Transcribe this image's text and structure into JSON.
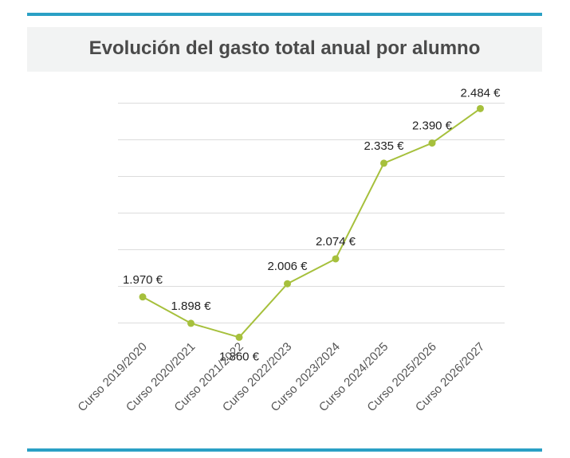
{
  "colors": {
    "rule": "#2aa0c5",
    "line": "#a6c03c",
    "grid": "#dcdcdc",
    "title_band": "#f2f3f3"
  },
  "chart_data": {
    "type": "line",
    "title": "Evolución del gasto total anual por alumno",
    "xlabel": "",
    "ylabel": "",
    "categories": [
      "Curso 2019/2020",
      "Curso 2020/2021",
      "Curso 2021/2022",
      "Curso 2022/2023",
      "Curso 2023/2024",
      "Curso 2024/2025",
      "Curso 2025/2026",
      "Curso 2026/2027"
    ],
    "series": [
      {
        "values": [
          1970,
          1898,
          1860,
          2006,
          2074,
          2335,
          2390,
          2484
        ],
        "labels": [
          "1.970 €",
          "1.898 €",
          "1.860 €",
          "2.006 €",
          "2.074 €",
          "2.335 €",
          "2.390 €",
          "2.484 €"
        ]
      }
    ],
    "ylim": [
      1800,
      2500
    ],
    "grid": true,
    "legend": "none"
  }
}
